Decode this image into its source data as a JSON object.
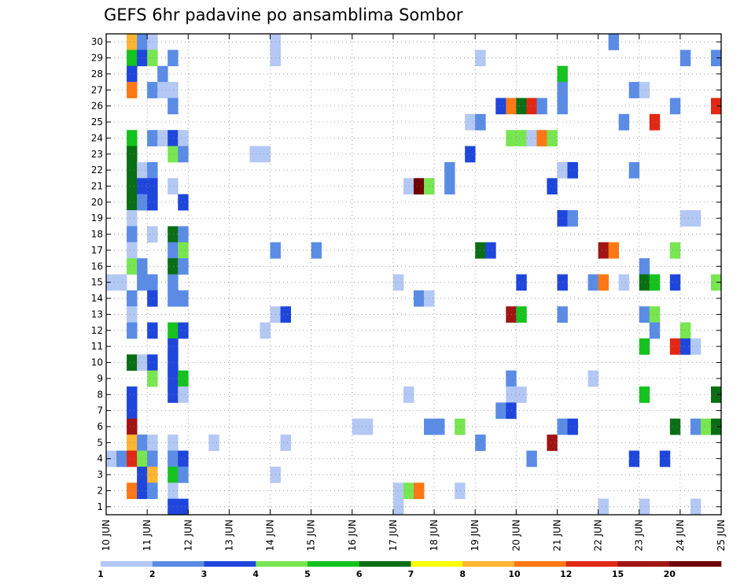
{
  "chart_data": {
    "type": "heatmap",
    "title": "GEFS 6hr padavine po ansamblima Sombor",
    "xlabel": "",
    "ylabel": "",
    "x_ticks": [
      "10 JUN",
      "11 JUN",
      "12 JUN",
      "13 JUN",
      "14 JUN",
      "15 JUN",
      "16 JUN",
      "17 JUN",
      "18 JUN",
      "19 JUN",
      "20 JUN",
      "21 JUN",
      "22 JUN",
      "23 JUN",
      "24 JUN",
      "25 JUN"
    ],
    "y_ticks": [
      "1",
      "2",
      "3",
      "4",
      "5",
      "6",
      "7",
      "8",
      "9",
      "10",
      "11",
      "12",
      "13",
      "14",
      "15",
      "16",
      "17",
      "18",
      "19",
      "20",
      "21",
      "22",
      "23",
      "24",
      "25",
      "26",
      "27",
      "28",
      "29",
      "30"
    ],
    "grid": true,
    "legend_position": "bottom",
    "colorbar": {
      "labels": [
        "1",
        "2",
        "3",
        "4",
        "5",
        "6",
        "7",
        "8",
        "10",
        "12",
        "15",
        "20"
      ],
      "colors": [
        "#b4c8f5",
        "#5a8ce6",
        "#1e46dc",
        "#78e650",
        "#14c31e",
        "#0a6e14",
        "#ffff00",
        "#ffb432",
        "#ff7814",
        "#e12814",
        "#a01414",
        "#6e0000"
      ]
    },
    "cell_values_note_levels": [
      1,
      2,
      3,
      4,
      5,
      6,
      7,
      8,
      10,
      12,
      15,
      20
    ],
    "cells": [
      [
        0.5,
        30,
        8
      ],
      [
        0.75,
        30,
        2
      ],
      [
        1.0,
        30,
        1
      ],
      [
        4.0,
        30,
        1
      ],
      [
        12.25,
        30,
        2
      ],
      [
        0.5,
        29,
        5
      ],
      [
        0.75,
        29,
        3
      ],
      [
        1.0,
        29,
        4
      ],
      [
        1.5,
        29,
        2
      ],
      [
        4.0,
        29,
        1
      ],
      [
        9.0,
        29,
        1
      ],
      [
        14.0,
        29,
        2
      ],
      [
        14.75,
        29,
        2
      ],
      [
        0.5,
        28,
        3
      ],
      [
        1.25,
        28,
        2
      ],
      [
        11.0,
        28,
        5
      ],
      [
        0.5,
        27,
        10
      ],
      [
        1.0,
        27,
        2
      ],
      [
        1.25,
        27,
        1
      ],
      [
        1.5,
        27,
        1
      ],
      [
        11.0,
        27,
        2
      ],
      [
        12.75,
        27,
        2
      ],
      [
        13.0,
        27,
        1
      ],
      [
        1.5,
        26,
        2
      ],
      [
        9.5,
        26,
        3
      ],
      [
        9.75,
        26,
        10
      ],
      [
        10.0,
        26,
        6
      ],
      [
        10.25,
        26,
        12
      ],
      [
        10.5,
        26,
        2
      ],
      [
        11.0,
        26,
        2
      ],
      [
        13.75,
        26,
        2
      ],
      [
        14.75,
        26,
        12
      ],
      [
        8.75,
        25,
        1
      ],
      [
        9.0,
        25,
        2
      ],
      [
        12.5,
        25,
        2
      ],
      [
        13.25,
        25,
        12
      ],
      [
        0.5,
        24,
        5
      ],
      [
        1.0,
        24,
        2
      ],
      [
        1.25,
        24,
        1
      ],
      [
        1.5,
        24,
        3
      ],
      [
        1.75,
        24,
        1
      ],
      [
        9.75,
        24,
        4
      ],
      [
        10.0,
        24,
        4
      ],
      [
        10.25,
        24,
        1
      ],
      [
        10.5,
        24,
        10
      ],
      [
        10.75,
        24,
        4
      ],
      [
        0.5,
        23,
        6
      ],
      [
        1.5,
        23,
        4
      ],
      [
        1.75,
        23,
        2
      ],
      [
        3.5,
        23,
        1
      ],
      [
        3.75,
        23,
        1
      ],
      [
        8.75,
        23,
        3
      ],
      [
        0.5,
        22,
        6
      ],
      [
        0.75,
        22,
        1
      ],
      [
        1.0,
        22,
        2
      ],
      [
        8.25,
        22,
        2
      ],
      [
        11.0,
        22,
        1
      ],
      [
        11.25,
        22,
        3
      ],
      [
        12.75,
        22,
        2
      ],
      [
        0.5,
        21,
        6
      ],
      [
        0.75,
        21,
        3
      ],
      [
        1.0,
        21,
        3
      ],
      [
        1.5,
        21,
        1
      ],
      [
        7.25,
        21,
        1
      ],
      [
        7.5,
        21,
        20
      ],
      [
        7.75,
        21,
        4
      ],
      [
        8.25,
        21,
        2
      ],
      [
        10.75,
        21,
        3
      ],
      [
        0.5,
        20,
        6
      ],
      [
        0.75,
        20,
        2
      ],
      [
        1.0,
        20,
        3
      ],
      [
        1.75,
        20,
        3
      ],
      [
        0.5,
        19,
        1
      ],
      [
        11.0,
        19,
        3
      ],
      [
        11.25,
        19,
        2
      ],
      [
        14.0,
        19,
        1
      ],
      [
        14.25,
        19,
        1
      ],
      [
        0.5,
        18,
        2
      ],
      [
        1.0,
        18,
        1
      ],
      [
        1.5,
        18,
        6
      ],
      [
        1.75,
        18,
        2
      ],
      [
        0.5,
        17,
        1
      ],
      [
        1.5,
        17,
        2
      ],
      [
        1.75,
        17,
        4
      ],
      [
        4.0,
        17,
        2
      ],
      [
        5.0,
        17,
        2
      ],
      [
        9.0,
        17,
        6
      ],
      [
        9.25,
        17,
        3
      ],
      [
        12.0,
        17,
        15
      ],
      [
        12.25,
        17,
        10
      ],
      [
        13.75,
        17,
        4
      ],
      [
        0.5,
        16,
        4
      ],
      [
        0.75,
        16,
        2
      ],
      [
        1.5,
        16,
        6
      ],
      [
        1.75,
        16,
        2
      ],
      [
        13.0,
        16,
        2
      ],
      [
        0.0,
        15,
        1
      ],
      [
        0.25,
        15,
        1
      ],
      [
        0.75,
        15,
        2
      ],
      [
        1.0,
        15,
        2
      ],
      [
        1.5,
        15,
        2
      ],
      [
        7.0,
        15,
        1
      ],
      [
        10.0,
        15,
        3
      ],
      [
        11.0,
        15,
        3
      ],
      [
        11.75,
        15,
        2
      ],
      [
        12.0,
        15,
        10
      ],
      [
        12.5,
        15,
        1
      ],
      [
        13.0,
        15,
        6
      ],
      [
        13.25,
        15,
        5
      ],
      [
        13.75,
        15,
        3
      ],
      [
        14.75,
        15,
        4
      ],
      [
        0.5,
        14,
        2
      ],
      [
        1.0,
        14,
        3
      ],
      [
        1.5,
        14,
        2
      ],
      [
        1.75,
        14,
        2
      ],
      [
        7.5,
        14,
        2
      ],
      [
        7.75,
        14,
        1
      ],
      [
        0.5,
        13,
        1
      ],
      [
        4.0,
        13,
        1
      ],
      [
        4.25,
        13,
        3
      ],
      [
        9.75,
        13,
        15
      ],
      [
        10.0,
        13,
        5
      ],
      [
        11.0,
        13,
        2
      ],
      [
        13.0,
        13,
        2
      ],
      [
        13.25,
        13,
        4
      ],
      [
        0.5,
        12,
        2
      ],
      [
        1.0,
        12,
        3
      ],
      [
        1.5,
        12,
        5
      ],
      [
        1.75,
        12,
        3
      ],
      [
        3.75,
        12,
        1
      ],
      [
        13.25,
        12,
        2
      ],
      [
        14.0,
        12,
        4
      ],
      [
        1.5,
        11,
        3
      ],
      [
        13.0,
        11,
        5
      ],
      [
        13.75,
        11,
        12
      ],
      [
        14.0,
        11,
        3
      ],
      [
        14.25,
        11,
        1
      ],
      [
        0.5,
        10,
        6
      ],
      [
        0.75,
        10,
        1
      ],
      [
        1.0,
        10,
        3
      ],
      [
        1.5,
        10,
        3
      ],
      [
        1.0,
        9,
        4
      ],
      [
        1.5,
        9,
        3
      ],
      [
        1.75,
        9,
        5
      ],
      [
        9.75,
        9,
        2
      ],
      [
        11.75,
        9,
        1
      ],
      [
        0.5,
        8,
        3
      ],
      [
        1.5,
        8,
        3
      ],
      [
        1.75,
        8,
        1
      ],
      [
        7.25,
        8,
        1
      ],
      [
        9.75,
        8,
        1
      ],
      [
        10.0,
        8,
        1
      ],
      [
        13.0,
        8,
        5
      ],
      [
        14.75,
        8,
        6
      ],
      [
        0.5,
        7,
        3
      ],
      [
        9.5,
        7,
        2
      ],
      [
        9.75,
        7,
        3
      ],
      [
        0.5,
        6,
        15
      ],
      [
        6.0,
        6,
        1
      ],
      [
        6.25,
        6,
        1
      ],
      [
        7.75,
        6,
        2
      ],
      [
        8.0,
        6,
        2
      ],
      [
        8.5,
        6,
        4
      ],
      [
        11.0,
        6,
        2
      ],
      [
        11.25,
        6,
        3
      ],
      [
        13.75,
        6,
        6
      ],
      [
        14.25,
        6,
        2
      ],
      [
        14.5,
        6,
        4
      ],
      [
        14.75,
        6,
        6
      ],
      [
        0.5,
        5,
        8
      ],
      [
        0.75,
        5,
        2
      ],
      [
        1.0,
        5,
        1
      ],
      [
        1.5,
        5,
        1
      ],
      [
        2.5,
        5,
        1
      ],
      [
        4.25,
        5,
        1
      ],
      [
        9.0,
        5,
        2
      ],
      [
        10.75,
        5,
        15
      ],
      [
        0.0,
        4,
        1
      ],
      [
        0.25,
        4,
        2
      ],
      [
        0.5,
        4,
        12
      ],
      [
        0.75,
        4,
        4
      ],
      [
        1.0,
        4,
        2
      ],
      [
        1.5,
        4,
        2
      ],
      [
        1.75,
        4,
        3
      ],
      [
        10.25,
        4,
        2
      ],
      [
        12.75,
        4,
        3
      ],
      [
        13.5,
        4,
        3
      ],
      [
        0.75,
        3,
        3
      ],
      [
        1.0,
        3,
        8
      ],
      [
        1.5,
        3,
        5
      ],
      [
        1.75,
        3,
        2
      ],
      [
        4.0,
        3,
        1
      ],
      [
        0.5,
        2,
        10
      ],
      [
        0.75,
        2,
        3
      ],
      [
        1.0,
        2,
        2
      ],
      [
        1.5,
        2,
        1
      ],
      [
        7.0,
        2,
        1
      ],
      [
        7.25,
        2,
        4
      ],
      [
        7.5,
        2,
        10
      ],
      [
        8.5,
        2,
        1
      ],
      [
        1.5,
        1,
        3
      ],
      [
        1.75,
        1,
        3
      ],
      [
        7.0,
        1,
        1
      ],
      [
        12.0,
        1,
        1
      ],
      [
        13.0,
        1,
        1
      ],
      [
        14.25,
        1,
        1
      ]
    ]
  }
}
